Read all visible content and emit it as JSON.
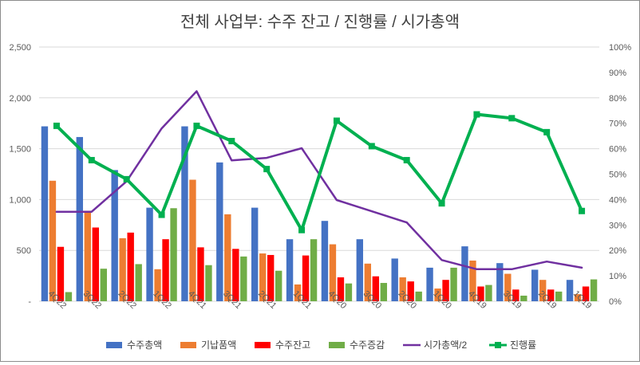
{
  "chart_data": {
    "type": "bar",
    "title": "전체 사업부: 수주 잔고 / 진행률 / 시가총액",
    "categories": [
      "4Q22",
      "3Q22",
      "2Q22",
      "1Q22",
      "4Q21",
      "3Q21",
      "2Q21",
      "1Q21",
      "4Q20",
      "3Q20",
      "2Q20",
      "1Q20",
      "4Q19",
      "3Q19",
      "2Q19",
      "1Q19"
    ],
    "y_left": {
      "min": 0,
      "max": 2500,
      "step": 500,
      "tick_labels": [
        "-",
        "500",
        "1,000",
        "1,500",
        "2,000",
        "2,500"
      ]
    },
    "y_right": {
      "min": 0,
      "max": 100,
      "step": 10,
      "tick_labels": [
        "0%",
        "10%",
        "20%",
        "30%",
        "40%",
        "50%",
        "60%",
        "70%",
        "80%",
        "90%",
        "100%"
      ]
    },
    "grid": "horizontal",
    "legend_position": "bottom",
    "series": [
      {
        "name": "수주총액",
        "kind": "bar",
        "axis": "left",
        "color": "#4472C4",
        "values": [
          1720,
          1615,
          1290,
          920,
          1720,
          1365,
          920,
          610,
          790,
          610,
          420,
          330,
          540,
          375,
          310,
          210
        ]
      },
      {
        "name": "기납품액",
        "kind": "bar",
        "axis": "left",
        "color": "#ED7D31",
        "values": [
          1185,
          890,
          620,
          315,
          1195,
          855,
          470,
          165,
          560,
          370,
          235,
          125,
          400,
          270,
          210,
          70
        ]
      },
      {
        "name": "수주잔고",
        "kind": "bar",
        "axis": "left",
        "color": "#FF0000",
        "values": [
          535,
          725,
          675,
          610,
          530,
          515,
          455,
          450,
          235,
          245,
          195,
          210,
          145,
          115,
          115,
          145
        ]
      },
      {
        "name": "수주증감",
        "kind": "bar",
        "axis": "left",
        "color": "#70AD47",
        "values": [
          90,
          320,
          365,
          915,
          355,
          440,
          300,
          610,
          175,
          180,
          95,
          330,
          160,
          55,
          95,
          215
        ]
      },
      {
        "name": "시가총액/2",
        "kind": "line",
        "axis": "left",
        "color": "#7030A0",
        "values": [
          880,
          880,
          1180,
          1700,
          2065,
          1385,
          1410,
          1505,
          995,
          885,
          775,
          405,
          315,
          315,
          390,
          330
        ]
      },
      {
        "name": "진행률",
        "kind": "line",
        "axis": "right",
        "color": "#00B050",
        "marker": "square",
        "values": [
          69,
          55.5,
          48,
          34,
          69,
          63,
          52,
          28,
          71,
          61,
          55.5,
          38.5,
          73.5,
          72,
          66.5,
          35.5
        ]
      }
    ]
  }
}
